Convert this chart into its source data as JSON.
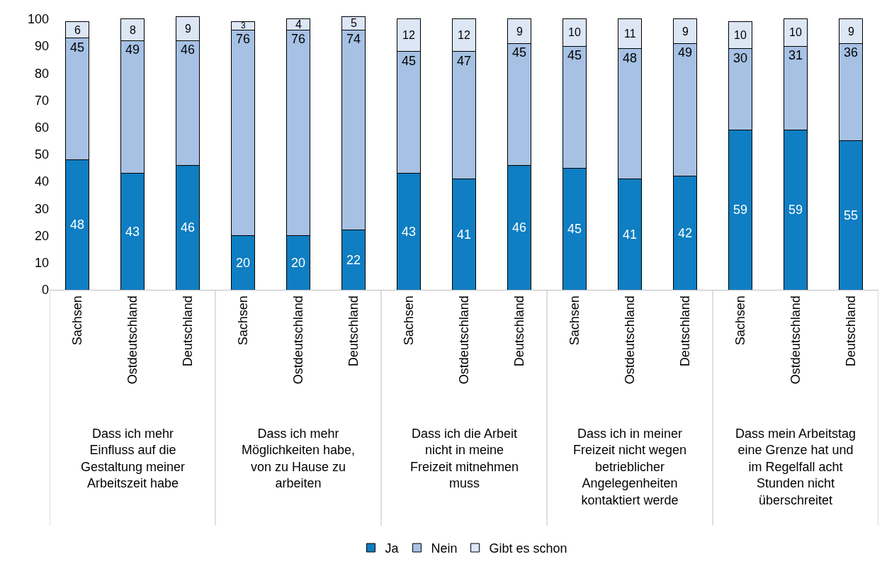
{
  "chart_data": {
    "type": "bar",
    "stacked": true,
    "data_labels": true,
    "legend": "bottom",
    "categories": [
      "Sachsen",
      "Ostdeutschland",
      "Deutschland",
      "Sachsen",
      "Ostdeutschland",
      "Deutschland",
      "Sachsen",
      "Ostdeutschland",
      "Deutschland",
      "Sachsen",
      "Ostdeutschland",
      "Deutschland",
      "Sachsen",
      "Ostdeutschland",
      "Deutschland"
    ],
    "series": [
      {
        "name": "Ja",
        "color": "#0f7ec2",
        "values": [
          48,
          43,
          46,
          20,
          20,
          22,
          43,
          41,
          46,
          45,
          41,
          42,
          59,
          59,
          55
        ]
      },
      {
        "name": "Nein",
        "color": "#a6c1e3",
        "values": [
          45,
          49,
          46,
          76,
          76,
          74,
          45,
          47,
          45,
          45,
          48,
          49,
          30,
          31,
          36
        ]
      },
      {
        "name": "Gibt es schon",
        "color": "#dce6f5",
        "values": [
          6,
          8,
          9,
          3,
          4,
          5,
          12,
          12,
          9,
          10,
          11,
          9,
          10,
          10,
          9
        ]
      }
    ],
    "ylim": [
      0,
      101
    ],
    "yticks": [
      0,
      10,
      20,
      30,
      40,
      50,
      60,
      70,
      80,
      90,
      100
    ],
    "annotations": [
      "Dass ich mehr Einfluss auf die Gestaltung meiner Arbeitszeit habe",
      "Dass ich mehr Möglichkeiten habe, von zu Hause zu arbeiten",
      "Dass ich die Arbeit nicht in meine Freizeit mitnehmen muss",
      "Dass ich in meiner Freizeit nicht wegen betrieblicher Angelegenheiten kontaktiert werde",
      "Dass mein Arbeitstag eine Grenze hat und im Regelfall acht Stunden nicht überschreitet"
    ]
  }
}
